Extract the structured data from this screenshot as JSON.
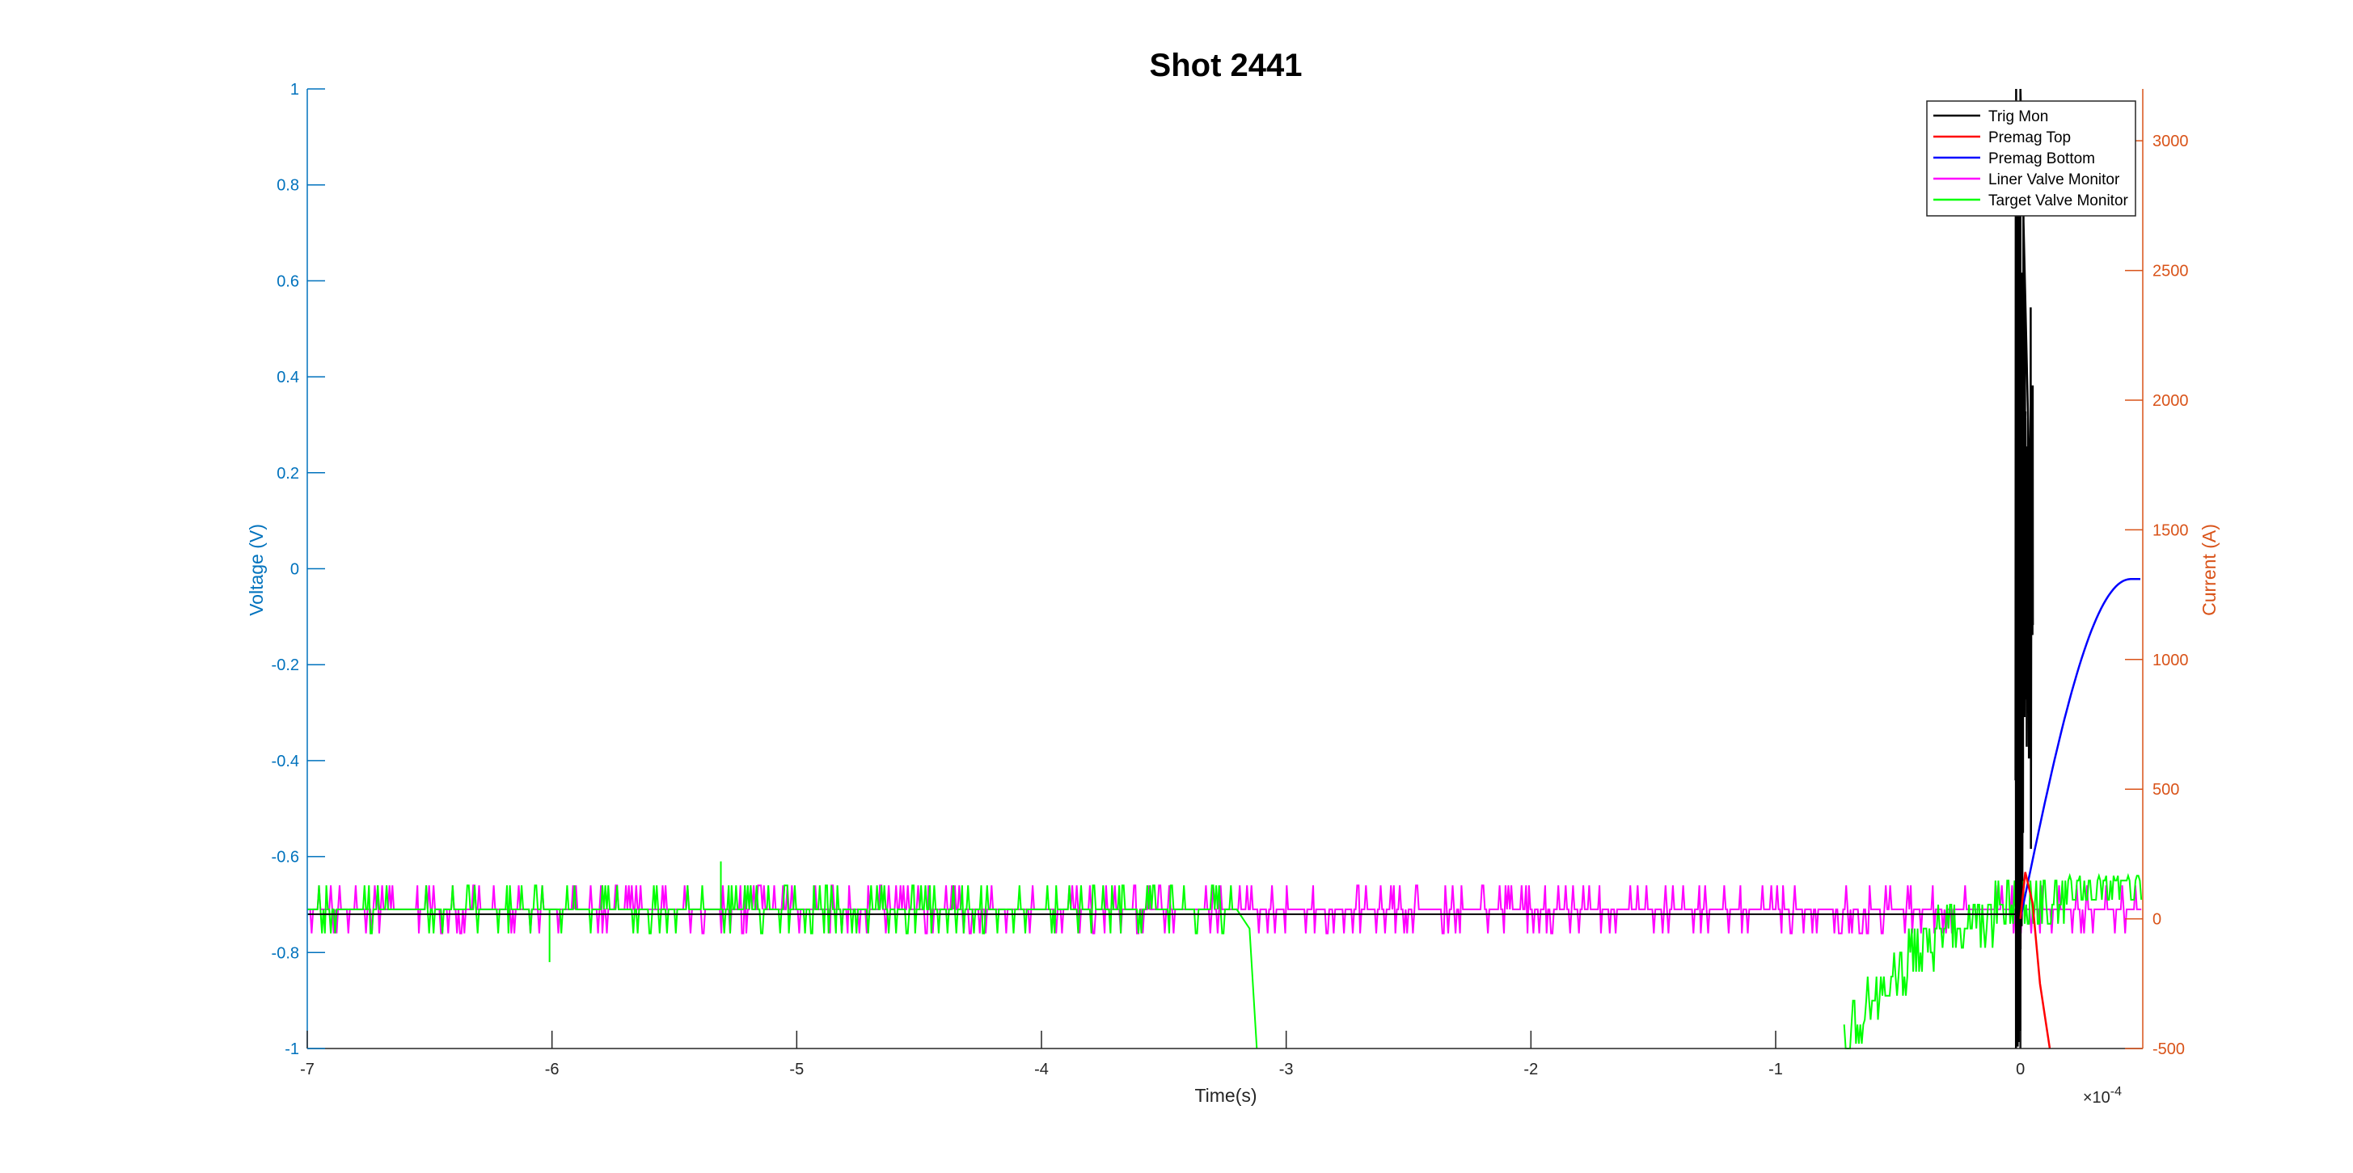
{
  "chart_data": {
    "type": "line",
    "title": "Shot 2441",
    "xlabel": "Time(s)",
    "x_exponent_label": "×10",
    "x_exponent_power": "-4",
    "x_multiplier": 0.0001,
    "xlim": [
      -7,
      0.5
    ],
    "x_ticks": [
      -7,
      -6,
      -5,
      -4,
      -3,
      -2,
      -1,
      0
    ],
    "ylabel_left": "Voltage (V)",
    "ylim_left": [
      -1,
      1
    ],
    "y_ticks_left": [
      -1,
      -0.8,
      -0.6,
      -0.4,
      -0.2,
      0,
      0.2,
      0.4,
      0.6,
      0.8,
      1
    ],
    "ylabel_right": "Current (A)",
    "ylim_right": [
      -500,
      3200
    ],
    "y_ticks_right": [
      -500,
      0,
      500,
      1000,
      1500,
      2000,
      2500,
      3000
    ],
    "grid": false,
    "legend_position": "top-right",
    "colors": {
      "left_axis": "#0072BD",
      "right_axis": "#D95319",
      "box": "#000000"
    },
    "series": [
      {
        "name": "Trig Mon",
        "color": "#000000",
        "axis": "left",
        "description_points": [
          [
            -7,
            -0.72
          ],
          [
            -0.02,
            -0.72
          ],
          [
            -0.01,
            1.0
          ],
          [
            0.0,
            -1.0
          ],
          [
            0.02,
            0.5
          ],
          [
            0.03,
            -0.3
          ],
          [
            0.04,
            -1.0
          ]
        ]
      },
      {
        "name": "Premag Top",
        "color": "#FF0000",
        "axis": "right",
        "description_points": [
          [
            0.0,
            0
          ],
          [
            0.02,
            180
          ],
          [
            0.05,
            60
          ],
          [
            0.08,
            -250
          ],
          [
            0.12,
            -500
          ]
        ]
      },
      {
        "name": "Premag Bottom",
        "color": "#0000FF",
        "axis": "right",
        "description_points": [
          [
            0.0,
            0
          ],
          [
            0.05,
            320
          ],
          [
            0.1,
            600
          ],
          [
            0.15,
            830
          ],
          [
            0.2,
            1010
          ],
          [
            0.25,
            1140
          ],
          [
            0.3,
            1230
          ],
          [
            0.35,
            1280
          ],
          [
            0.4,
            1300
          ],
          [
            0.5,
            1310
          ]
        ]
      },
      {
        "name": "Liner Valve Monitor",
        "color": "#FF00FF",
        "axis": "left",
        "baseline": -0.71,
        "noise_levels": [
          -0.66,
          -0.71,
          -0.76
        ],
        "x_range": [
          -7,
          0.5
        ]
      },
      {
        "name": "Target Valve Monitor",
        "color": "#00FF00",
        "axis": "left",
        "baseline": -0.71,
        "noise_levels": [
          -0.66,
          -0.71,
          -0.76
        ],
        "x_range": [
          -7,
          -3.2
        ],
        "drop_segment": [
          [
            -3.15,
            -0.75
          ],
          [
            -3.12,
            -1.0
          ]
        ],
        "ramp_segment": [
          [
            -0.72,
            -1.0
          ],
          [
            -0.6,
            -0.89
          ],
          [
            -0.45,
            -0.82
          ],
          [
            -0.3,
            -0.76
          ],
          [
            -0.15,
            -0.73
          ],
          [
            0.0,
            -0.71
          ],
          [
            0.1,
            -0.68
          ],
          [
            0.5,
            -0.66
          ]
        ]
      }
    ]
  }
}
